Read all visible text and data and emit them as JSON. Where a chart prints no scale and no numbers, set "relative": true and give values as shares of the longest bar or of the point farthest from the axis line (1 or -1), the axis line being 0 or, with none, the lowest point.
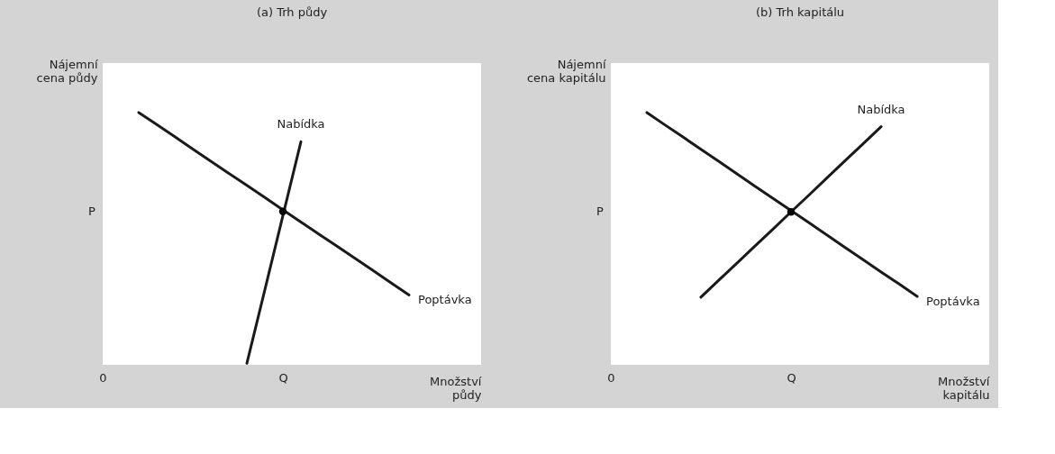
{
  "chart_data": [
    {
      "type": "line",
      "title": "(a) Trh půdy",
      "xlabel": "Množství\npůdy",
      "ylabel": "Nájemní\ncena půdy",
      "relative": true,
      "grid": false,
      "marker": "none",
      "categories": [
        "0",
        null,
        null,
        null,
        null,
        null,
        null,
        null,
        null,
        null,
        "Q",
        null,
        null,
        null,
        null,
        null,
        null,
        null,
        null,
        null,
        null,
        null
      ],
      "series": [
        {
          "name": "Nabídka",
          "color": "#1a1a1a",
          "values": [
            null,
            null,
            null,
            null,
            null,
            null,
            null,
            null,
            0.006,
            0.298,
            0.591,
            0.884,
            null,
            null,
            null,
            null,
            null,
            null,
            null,
            null,
            null,
            null
          ]
        },
        {
          "name": "Poptávka",
          "color": "#1a1a1a",
          "values": [
            null,
            null,
            1,
            0.952,
            0.904,
            0.855,
            0.807,
            0.759,
            0.711,
            0.663,
            0.614,
            0.566,
            0.518,
            0.47,
            0.422,
            0.374,
            0.325,
            0.277,
            null,
            null,
            null,
            null
          ]
        },
        {
          "type": "scatter",
          "marker": "circle",
          "color": "#000000",
          "values": [
            null,
            null,
            null,
            null,
            null,
            null,
            null,
            null,
            null,
            null,
            0.608,
            null,
            null,
            null,
            null,
            null,
            null,
            null,
            null,
            null,
            null,
            null
          ]
        }
      ],
      "annotations": [
        "P"
      ]
    },
    {
      "type": "line",
      "title": "(b) Trh kapitálu",
      "xlabel": "Množství\nkapitálu",
      "ylabel": "Nájemní\ncena kapitálu",
      "relative": true,
      "grid": false,
      "marker": "none",
      "categories": [
        "0",
        null,
        null,
        null,
        null,
        null,
        null,
        null,
        null,
        null,
        "Q",
        null,
        null,
        null,
        null,
        null,
        null,
        null,
        null,
        null,
        null,
        null
      ],
      "series": [
        {
          "name": "Nabídka",
          "color": "#1a1a1a",
          "values": [
            null,
            null,
            null,
            null,
            null,
            0.268,
            0.336,
            0.403,
            0.471,
            0.538,
            0.606,
            0.673,
            0.741,
            0.809,
            0.876,
            0.944,
            null,
            null,
            null,
            null,
            null,
            null
          ]
        },
        {
          "name": "Poptávka",
          "color": "#1a1a1a",
          "values": [
            null,
            null,
            1,
            0.951,
            0.903,
            0.854,
            0.806,
            0.757,
            0.708,
            0.66,
            0.611,
            0.563,
            0.514,
            0.465,
            0.417,
            0.368,
            0.32,
            0.271,
            null,
            null,
            null,
            null
          ]
        },
        {
          "type": "scatter",
          "marker": "circle",
          "color": "#000000",
          "values": [
            null,
            null,
            null,
            null,
            null,
            null,
            null,
            null,
            null,
            null,
            0.606,
            null,
            null,
            null,
            null,
            null,
            null,
            null,
            null,
            null,
            null,
            null
          ]
        }
      ],
      "annotations": [
        "P"
      ]
    }
  ]
}
